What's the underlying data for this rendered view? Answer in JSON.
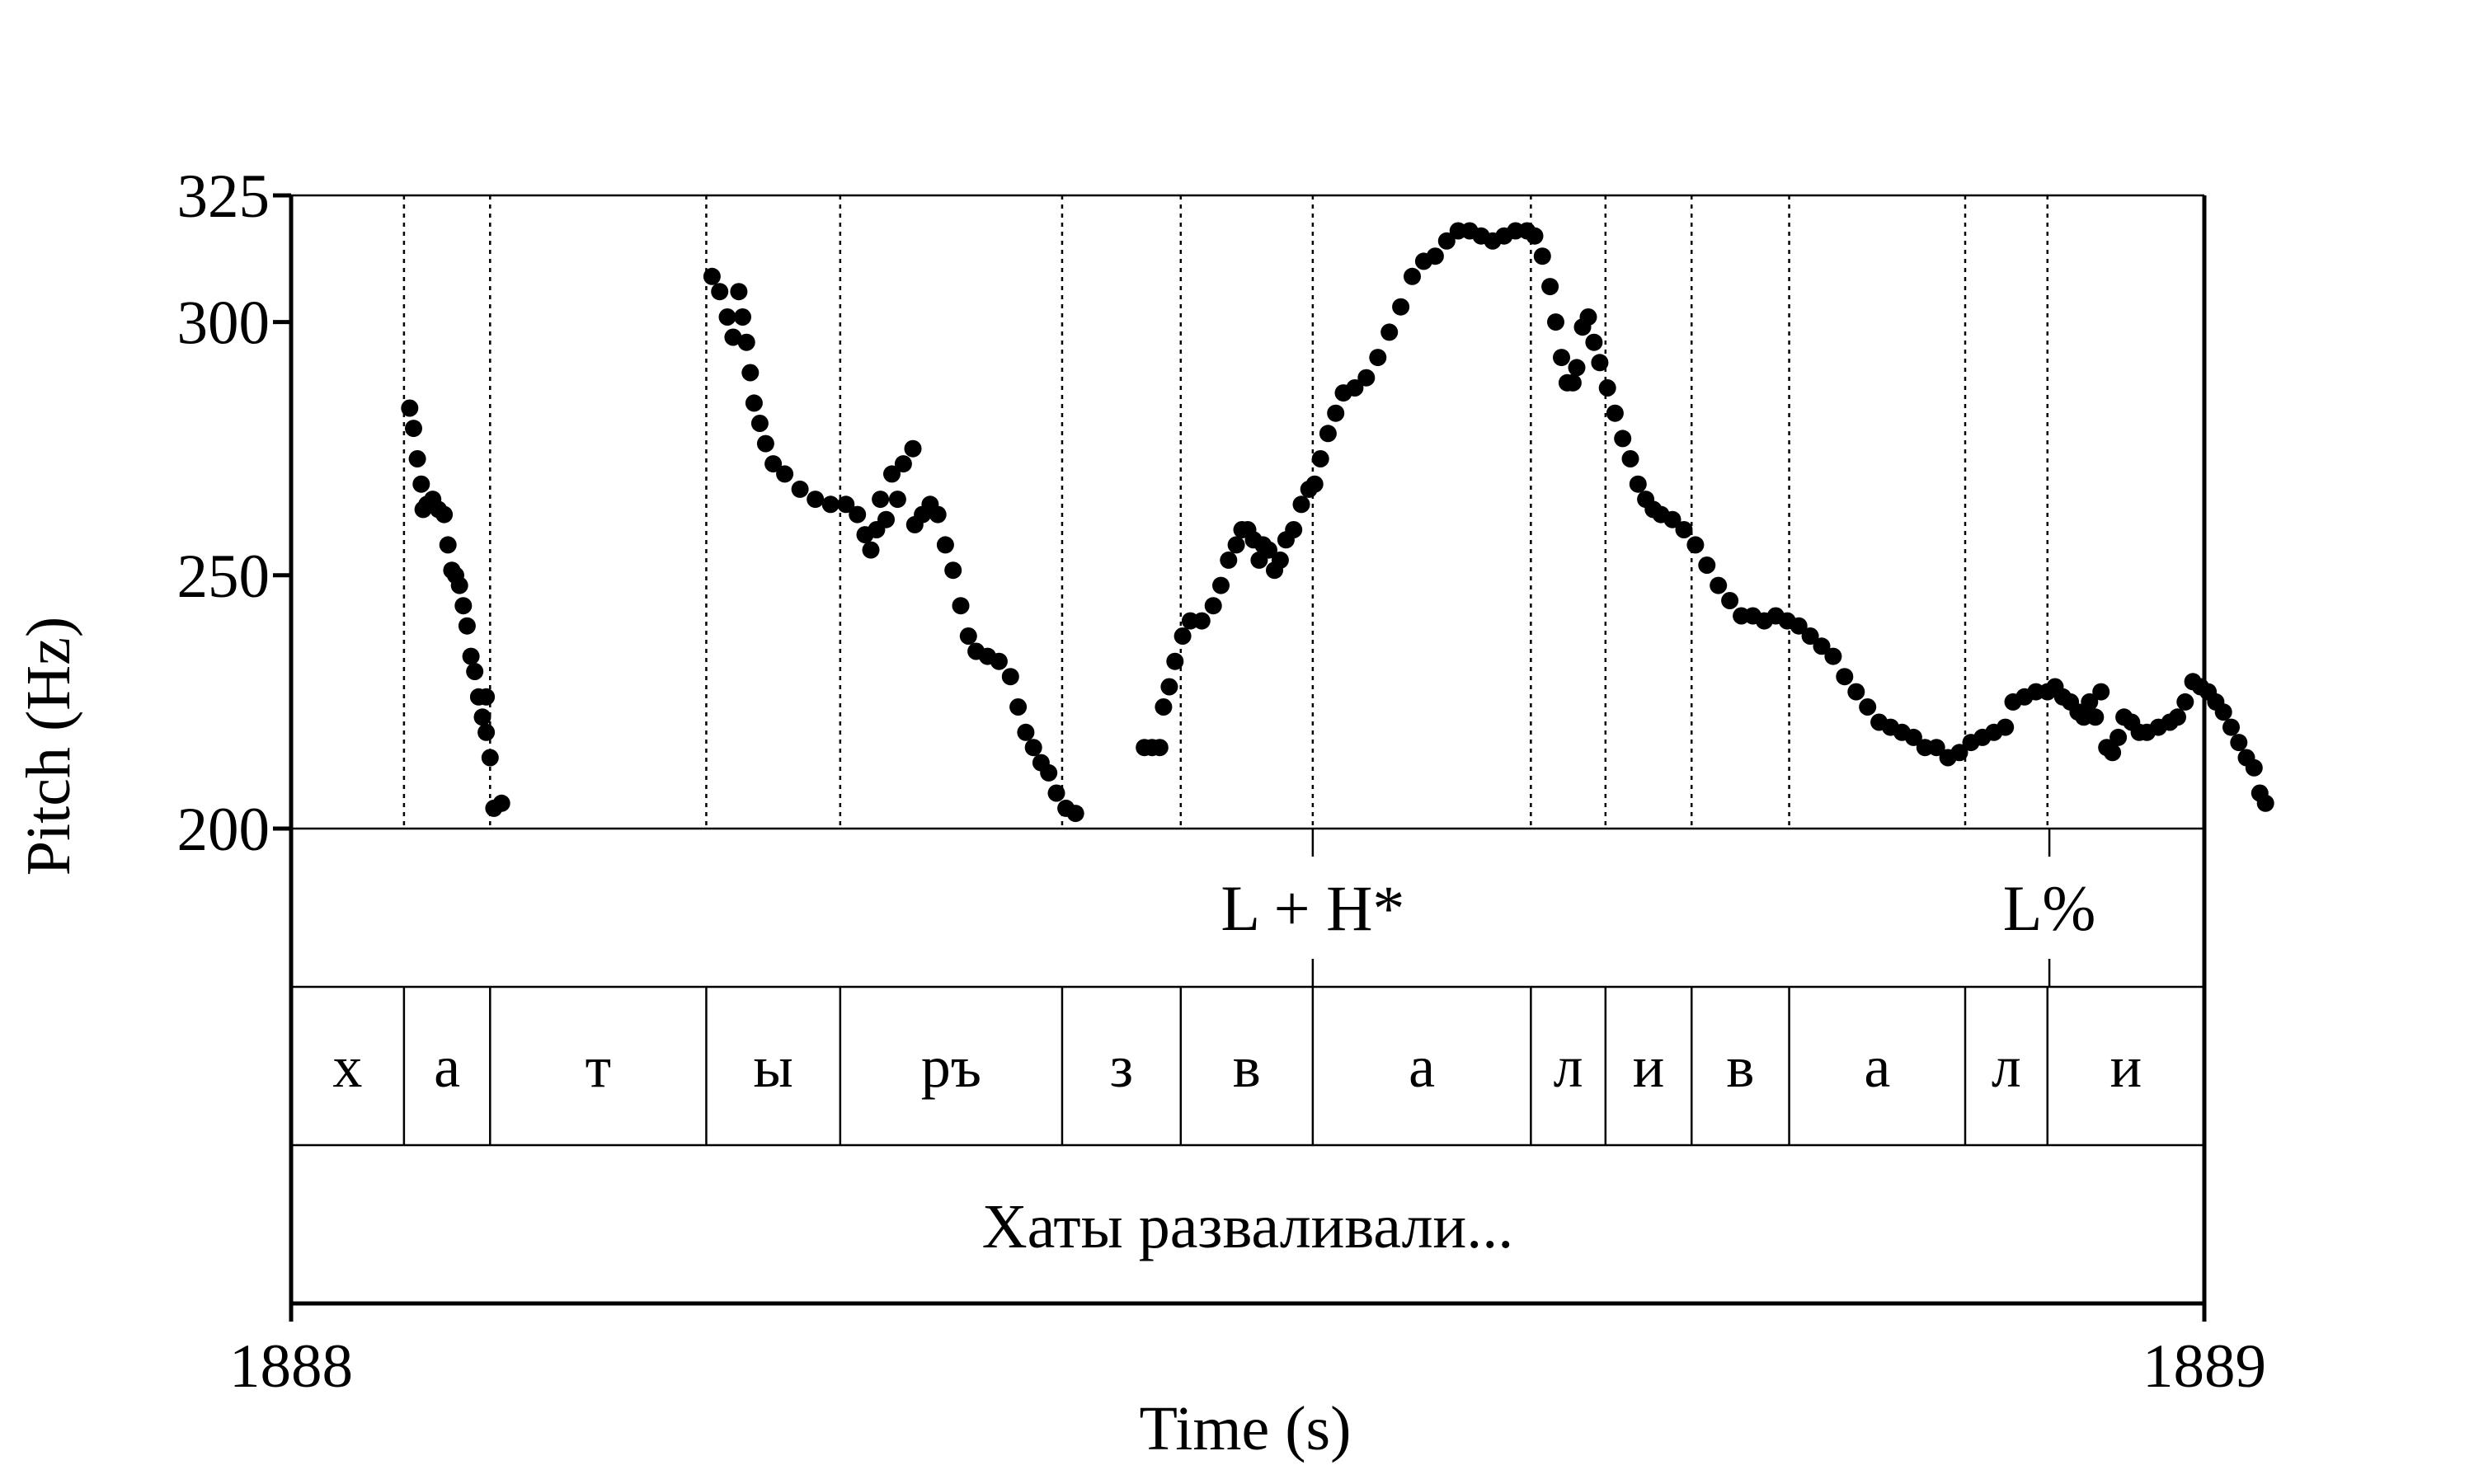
{
  "chart_data": {
    "type": "scatter",
    "xlabel": "Time (s)",
    "ylabel": "Pitch (Hz)",
    "xlim": [
      1888,
      1889
    ],
    "ylim": [
      200,
      325
    ],
    "x_ticks": [
      1888,
      1889
    ],
    "x_tick_labels": [
      "1888",
      "1889"
    ],
    "y_ticks": [
      200,
      250,
      300,
      325
    ],
    "y_tick_labels": [
      "200",
      "250",
      "300",
      "325"
    ],
    "grid": false,
    "legend": "none",
    "point_color": "#000000",
    "series": [
      {
        "values": [
          [
            1888.062,
            283
          ],
          [
            1888.064,
            279
          ],
          [
            1888.066,
            273
          ],
          [
            1888.068,
            268
          ],
          [
            1888.069,
            263
          ],
          [
            1888.071,
            264
          ],
          [
            1888.074,
            265
          ],
          [
            1888.077,
            263
          ],
          [
            1888.08,
            262
          ],
          [
            1888.082,
            256
          ],
          [
            1888.084,
            251
          ],
          [
            1888.086,
            250
          ],
          [
            1888.088,
            248
          ],
          [
            1888.09,
            244
          ],
          [
            1888.092,
            240
          ],
          [
            1888.094,
            234
          ],
          [
            1888.096,
            231
          ],
          [
            1888.098,
            226
          ],
          [
            1888.1,
            222
          ],
          [
            1888.102,
            219
          ],
          [
            1888.104,
            214
          ],
          [
            1888.102,
            226
          ],
          [
            1888.106,
            204
          ],
          [
            1888.11,
            205
          ],
          [
            1888.22,
            309
          ],
          [
            1888.224,
            306
          ],
          [
            1888.228,
            301
          ],
          [
            1888.231,
            297
          ],
          [
            1888.234,
            306
          ],
          [
            1888.236,
            301
          ],
          [
            1888.238,
            296
          ],
          [
            1888.24,
            290
          ],
          [
            1888.242,
            284
          ],
          [
            1888.245,
            280
          ],
          [
            1888.248,
            276
          ],
          [
            1888.252,
            272
          ],
          [
            1888.258,
            270
          ],
          [
            1888.266,
            267
          ],
          [
            1888.274,
            265
          ],
          [
            1888.282,
            264
          ],
          [
            1888.29,
            264
          ],
          [
            1888.296,
            262
          ],
          [
            1888.3,
            258
          ],
          [
            1888.303,
            255
          ],
          [
            1888.306,
            259
          ],
          [
            1888.308,
            265
          ],
          [
            1888.311,
            261
          ],
          [
            1888.314,
            270
          ],
          [
            1888.317,
            265
          ],
          [
            1888.32,
            272
          ],
          [
            1888.325,
            275
          ],
          [
            1888.326,
            260
          ],
          [
            1888.33,
            262
          ],
          [
            1888.334,
            264
          ],
          [
            1888.338,
            262
          ],
          [
            1888.342,
            256
          ],
          [
            1888.346,
            251
          ],
          [
            1888.35,
            244
          ],
          [
            1888.354,
            238
          ],
          [
            1888.358,
            235
          ],
          [
            1888.364,
            234
          ],
          [
            1888.37,
            233
          ],
          [
            1888.376,
            230
          ],
          [
            1888.38,
            224
          ],
          [
            1888.384,
            219
          ],
          [
            1888.388,
            216
          ],
          [
            1888.392,
            213
          ],
          [
            1888.396,
            211
          ],
          [
            1888.4,
            207
          ],
          [
            1888.405,
            204
          ],
          [
            1888.41,
            203
          ],
          [
            1888.446,
            216
          ],
          [
            1888.45,
            216
          ],
          [
            1888.454,
            216
          ],
          [
            1888.456,
            224
          ],
          [
            1888.459,
            228
          ],
          [
            1888.462,
            233
          ],
          [
            1888.466,
            238
          ],
          [
            1888.47,
            241
          ],
          [
            1888.476,
            241
          ],
          [
            1888.482,
            244
          ],
          [
            1888.486,
            248
          ],
          [
            1888.49,
            253
          ],
          [
            1888.494,
            256
          ],
          [
            1888.497,
            259
          ],
          [
            1888.5,
            259
          ],
          [
            1888.503,
            257
          ],
          [
            1888.506,
            253
          ],
          [
            1888.508,
            256
          ],
          [
            1888.511,
            255
          ],
          [
            1888.514,
            251
          ],
          [
            1888.517,
            253
          ],
          [
            1888.52,
            257
          ],
          [
            1888.524,
            259
          ],
          [
            1888.528,
            264
          ],
          [
            1888.532,
            267
          ],
          [
            1888.535,
            268
          ],
          [
            1888.538,
            273
          ],
          [
            1888.542,
            278
          ],
          [
            1888.546,
            282
          ],
          [
            1888.55,
            286
          ],
          [
            1888.556,
            287
          ],
          [
            1888.562,
            289
          ],
          [
            1888.568,
            293
          ],
          [
            1888.574,
            298
          ],
          [
            1888.58,
            303
          ],
          [
            1888.586,
            309
          ],
          [
            1888.592,
            312
          ],
          [
            1888.598,
            313
          ],
          [
            1888.604,
            316
          ],
          [
            1888.61,
            318
          ],
          [
            1888.616,
            318
          ],
          [
            1888.622,
            317
          ],
          [
            1888.628,
            316
          ],
          [
            1888.634,
            317
          ],
          [
            1888.64,
            318
          ],
          [
            1888.646,
            318
          ],
          [
            1888.65,
            317
          ],
          [
            1888.654,
            313
          ],
          [
            1888.658,
            307
          ],
          [
            1888.661,
            300
          ],
          [
            1888.664,
            293
          ],
          [
            1888.667,
            288
          ],
          [
            1888.67,
            288
          ],
          [
            1888.672,
            291
          ],
          [
            1888.675,
            299
          ],
          [
            1888.678,
            301
          ],
          [
            1888.681,
            296
          ],
          [
            1888.684,
            292
          ],
          [
            1888.688,
            287
          ],
          [
            1888.692,
            282
          ],
          [
            1888.696,
            277
          ],
          [
            1888.7,
            273
          ],
          [
            1888.704,
            268
          ],
          [
            1888.708,
            265
          ],
          [
            1888.712,
            263
          ],
          [
            1888.716,
            262
          ],
          [
            1888.722,
            261
          ],
          [
            1888.728,
            259
          ],
          [
            1888.734,
            256
          ],
          [
            1888.74,
            252
          ],
          [
            1888.746,
            248
          ],
          [
            1888.752,
            245
          ],
          [
            1888.758,
            242
          ],
          [
            1888.764,
            242
          ],
          [
            1888.77,
            241
          ],
          [
            1888.776,
            242
          ],
          [
            1888.782,
            241
          ],
          [
            1888.788,
            240
          ],
          [
            1888.794,
            238
          ],
          [
            1888.8,
            236
          ],
          [
            1888.806,
            234
          ],
          [
            1888.812,
            230
          ],
          [
            1888.818,
            227
          ],
          [
            1888.824,
            224
          ],
          [
            1888.83,
            221
          ],
          [
            1888.836,
            220
          ],
          [
            1888.842,
            219
          ],
          [
            1888.848,
            218
          ],
          [
            1888.854,
            216
          ],
          [
            1888.86,
            216
          ],
          [
            1888.866,
            214
          ],
          [
            1888.872,
            215
          ],
          [
            1888.878,
            217
          ],
          [
            1888.884,
            218
          ],
          [
            1888.89,
            219
          ],
          [
            1888.896,
            220
          ],
          [
            1888.9,
            225
          ],
          [
            1888.906,
            226
          ],
          [
            1888.912,
            227
          ],
          [
            1888.918,
            227
          ],
          [
            1888.922,
            228
          ],
          [
            1888.926,
            226
          ],
          [
            1888.93,
            225
          ],
          [
            1888.934,
            223
          ],
          [
            1888.937,
            222
          ],
          [
            1888.94,
            225
          ],
          [
            1888.943,
            222
          ],
          [
            1888.946,
            227
          ],
          [
            1888.949,
            216
          ],
          [
            1888.952,
            215
          ],
          [
            1888.955,
            218
          ],
          [
            1888.958,
            222
          ],
          [
            1888.962,
            221
          ],
          [
            1888.966,
            219
          ],
          [
            1888.97,
            219
          ],
          [
            1888.976,
            220
          ],
          [
            1888.982,
            221
          ],
          [
            1888.986,
            222
          ],
          [
            1888.99,
            225
          ],
          [
            1888.994,
            229
          ],
          [
            1888.998,
            228
          ],
          [
            1889.002,
            227
          ],
          [
            1889.006,
            225
          ],
          [
            1889.01,
            223
          ],
          [
            1889.014,
            220
          ],
          [
            1889.018,
            217
          ],
          [
            1889.022,
            214
          ],
          [
            1889.026,
            212
          ],
          [
            1889.029,
            207
          ],
          [
            1889.032,
            205
          ]
        ]
      }
    ],
    "tiers": [
      {
        "name": "tones",
        "labels": [
          {
            "text": "L + H*",
            "time": 1888.534
          },
          {
            "text": "L%",
            "time": 1888.919
          }
        ]
      },
      {
        "name": "segments",
        "boundaries": [
          1888,
          1888.059,
          1888.104,
          1888.217,
          1888.287,
          1888.403,
          1888.465,
          1888.534,
          1888.648,
          1888.687,
          1888.732,
          1888.783,
          1888.875,
          1888.918,
          1889
        ],
        "labels": [
          "х",
          "а",
          "т",
          "ы",
          "ръ",
          "з",
          "в",
          "а",
          "л",
          "и",
          "в",
          "а",
          "л",
          "и"
        ]
      },
      {
        "name": "utterance",
        "labels": [
          {
            "text": "Хаты разваливали...",
            "start": 1888,
            "end": 1889
          }
        ]
      }
    ]
  }
}
